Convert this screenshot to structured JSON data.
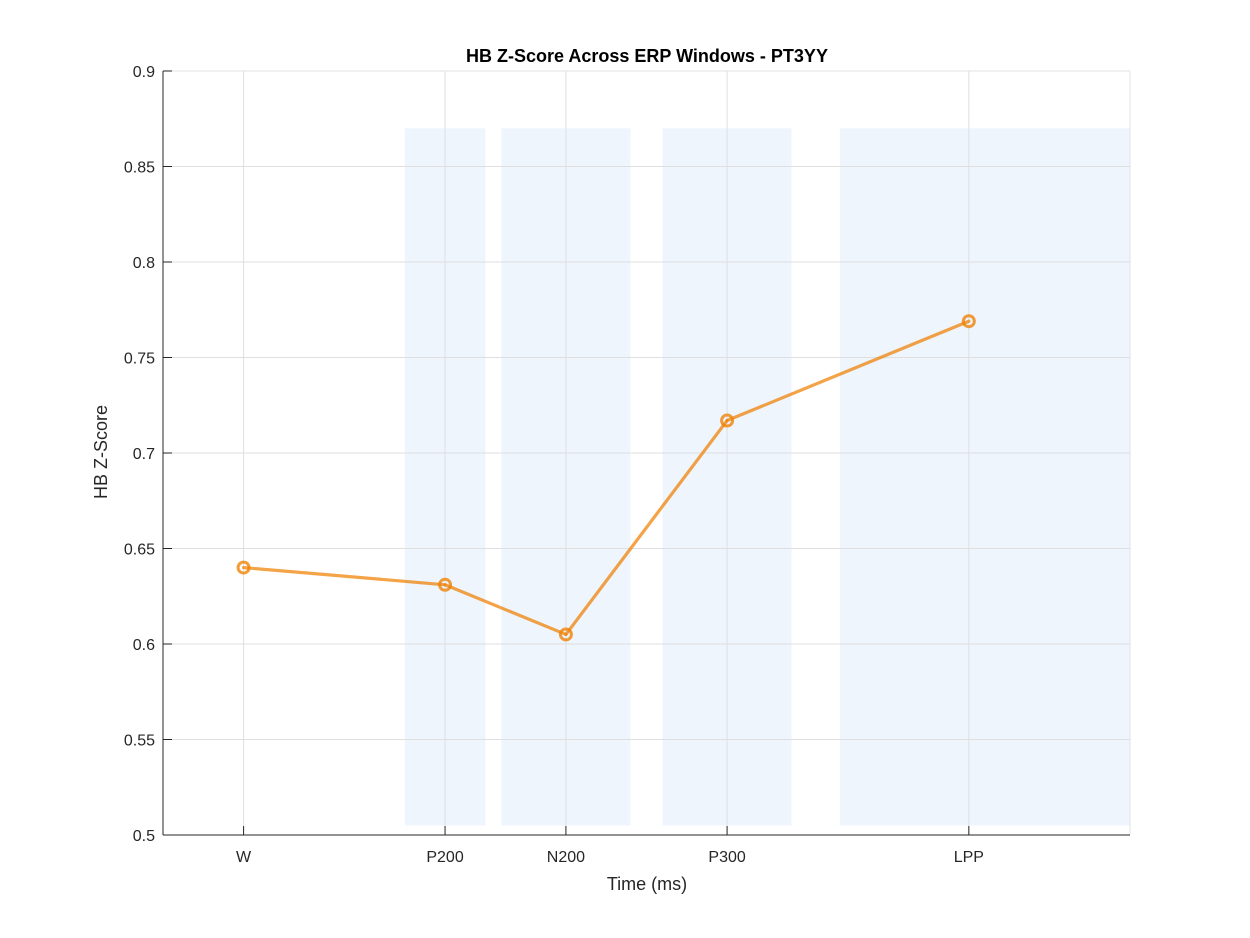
{
  "chart_data": {
    "type": "line",
    "title": "HB Z-Score Across ERP Windows - PT3YY",
    "xlabel": "Time (ms)",
    "ylabel": "HB Z-Score",
    "xlim": [
      -100,
      1100
    ],
    "ylim": [
      0.5,
      0.9
    ],
    "yticks": [
      0.5,
      0.55,
      0.6,
      0.65,
      0.7,
      0.75,
      0.8,
      0.85,
      0.9
    ],
    "ytick_labels": [
      "0.5",
      "0.55",
      "0.6",
      "0.65",
      "0.7",
      "0.75",
      "0.8",
      "0.85",
      "0.9"
    ],
    "xticks": [
      0,
      250,
      400,
      600,
      900
    ],
    "xtick_labels": [
      "W",
      "P200",
      "N200",
      "P300",
      "LPP"
    ],
    "grid": true,
    "series": [
      {
        "x": [
          0,
          250,
          400,
          600,
          900
        ],
        "values": [
          0.64,
          0.631,
          0.605,
          0.717,
          0.769
        ],
        "color": "#f08000",
        "marker": "circle"
      }
    ],
    "shaded_windows": [
      {
        "x": [
          200,
          300
        ],
        "y": [
          0.505,
          0.87
        ]
      },
      {
        "x": [
          320,
          480
        ],
        "y": [
          0.505,
          0.87
        ]
      },
      {
        "x": [
          520,
          680
        ],
        "y": [
          0.505,
          0.87
        ]
      },
      {
        "x": [
          740,
          1100
        ],
        "y": [
          0.505,
          0.87
        ]
      }
    ],
    "shade_color": "#eef5fd"
  }
}
